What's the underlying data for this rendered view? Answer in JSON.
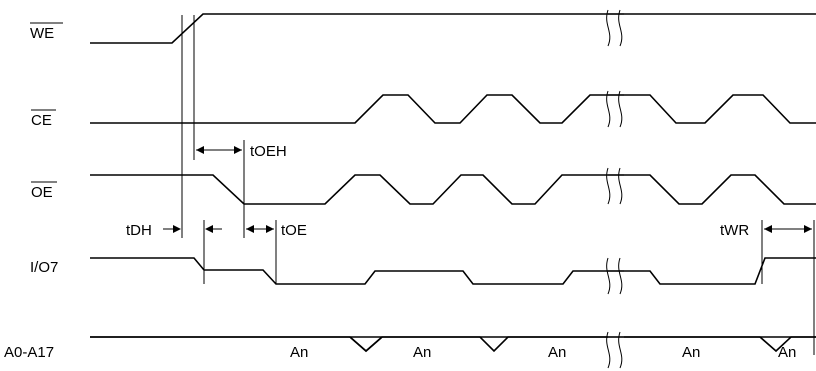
{
  "signals": {
    "we": "WE",
    "ce": "CE",
    "oe": "OE",
    "io7": "I/O7",
    "addr": "A0-A17"
  },
  "timing": {
    "toeh": "tOEH",
    "tdh": "tDH",
    "toe": "tOE",
    "twr": "tWR"
  },
  "address_label": "An"
}
